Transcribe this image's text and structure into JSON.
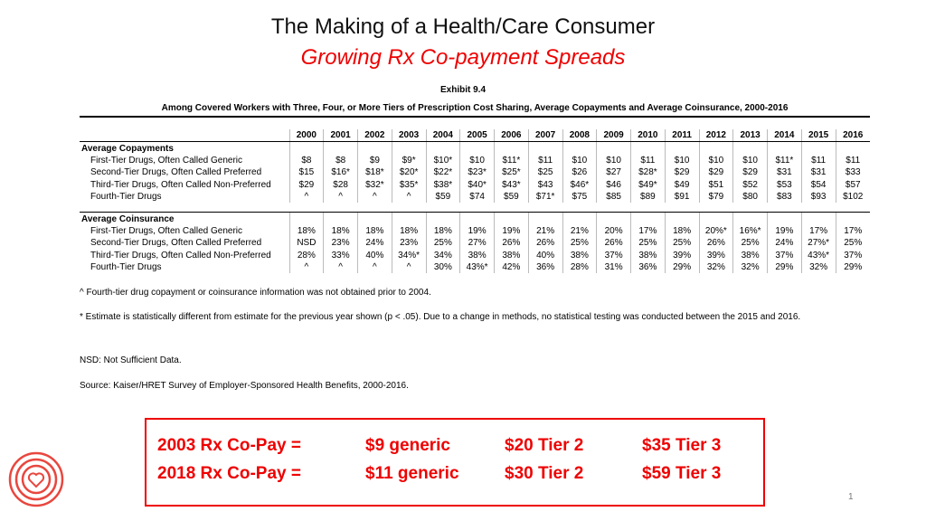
{
  "header": {
    "title": "The Making of a Health/Care Consumer",
    "subtitle": "Growing Rx Co-payment Spreads"
  },
  "exhibit": {
    "label": "Exhibit 9.4",
    "title": "Among Covered Workers with Three, Four, or More Tiers of Prescription Cost Sharing, Average Copayments and Average Coinsurance, 2000-2016"
  },
  "table": {
    "columns": [
      "2000",
      "2001",
      "2002",
      "2003",
      "2004",
      "2005",
      "2006",
      "2007",
      "2008",
      "2009",
      "2010",
      "2011",
      "2012",
      "2013",
      "2014",
      "2015",
      "2016"
    ],
    "sections": [
      {
        "label": "Average Copayments",
        "rows": [
          {
            "label": "First-Tier Drugs, Often Called Generic",
            "values": [
              "$8",
              "$8",
              "$9",
              "$9*",
              "$10*",
              "$10",
              "$11*",
              "$11",
              "$10",
              "$10",
              "$11",
              "$10",
              "$10",
              "$10",
              "$11*",
              "$11",
              "$11"
            ]
          },
          {
            "label": "Second-Tier Drugs, Often Called Preferred",
            "values": [
              "$15",
              "$16*",
              "$18*",
              "$20*",
              "$22*",
              "$23*",
              "$25*",
              "$25",
              "$26",
              "$27",
              "$28*",
              "$29",
              "$29",
              "$29",
              "$31",
              "$31",
              "$33"
            ]
          },
          {
            "label": "Third-Tier Drugs, Often Called Non-Preferred",
            "values": [
              "$29",
              "$28",
              "$32*",
              "$35*",
              "$38*",
              "$40*",
              "$43*",
              "$43",
              "$46*",
              "$46",
              "$49*",
              "$49",
              "$51",
              "$52",
              "$53",
              "$54",
              "$57"
            ]
          },
          {
            "label": "Fourth-Tier Drugs",
            "values": [
              "^",
              "^",
              "^",
              "^",
              "$59",
              "$74",
              "$59",
              "$71*",
              "$75",
              "$85",
              "$89",
              "$91",
              "$79",
              "$80",
              "$83",
              "$93",
              "$102"
            ]
          }
        ]
      },
      {
        "label": "Average Coinsurance",
        "rows": [
          {
            "label": "First-Tier Drugs, Often Called Generic",
            "values": [
              "18%",
              "18%",
              "18%",
              "18%",
              "18%",
              "19%",
              "19%",
              "21%",
              "21%",
              "20%",
              "17%",
              "18%",
              "20%*",
              "16%*",
              "19%",
              "17%",
              "17%"
            ]
          },
          {
            "label": "Second-Tier Drugs, Often Called Preferred",
            "values": [
              "NSD",
              "23%",
              "24%",
              "23%",
              "25%",
              "27%",
              "26%",
              "26%",
              "25%",
              "26%",
              "25%",
              "25%",
              "26%",
              "25%",
              "24%",
              "27%*",
              "25%"
            ]
          },
          {
            "label": "Third-Tier Drugs, Often Called Non-Preferred",
            "values": [
              "28%",
              "33%",
              "40%",
              "34%*",
              "34%",
              "38%",
              "38%",
              "40%",
              "38%",
              "37%",
              "38%",
              "39%",
              "39%",
              "38%",
              "37%",
              "43%*",
              "37%"
            ]
          },
          {
            "label": "Fourth-Tier Drugs",
            "values": [
              "^",
              "^",
              "^",
              "^",
              "30%",
              "43%*",
              "42%",
              "36%",
              "28%",
              "31%",
              "36%",
              "29%",
              "32%",
              "32%",
              "29%",
              "32%",
              "29%"
            ]
          }
        ]
      }
    ]
  },
  "notes": [
    "^ Fourth-tier drug copayment or coinsurance information was not obtained prior to 2004.",
    "* Estimate is statistically different from estimate for the previous year shown (p < .05).  Due to a change in methods, no statistical testing was conducted between the 2015 and 2016.",
    "NSD: Not Sufficient Data.",
    "Source: Kaiser/HRET Survey of Employer-Sponsored Health Benefits, 2000-2016."
  ],
  "callout": {
    "rows": [
      [
        "2003 Rx Co-Pay =",
        "$9 generic",
        "$20 Tier 2",
        "$35 Tier 3"
      ],
      [
        "2018 Rx Co-Pay =",
        "$11 generic",
        "$30 Tier 2",
        "$59 Tier 3"
      ]
    ]
  },
  "slide_number": "1"
}
